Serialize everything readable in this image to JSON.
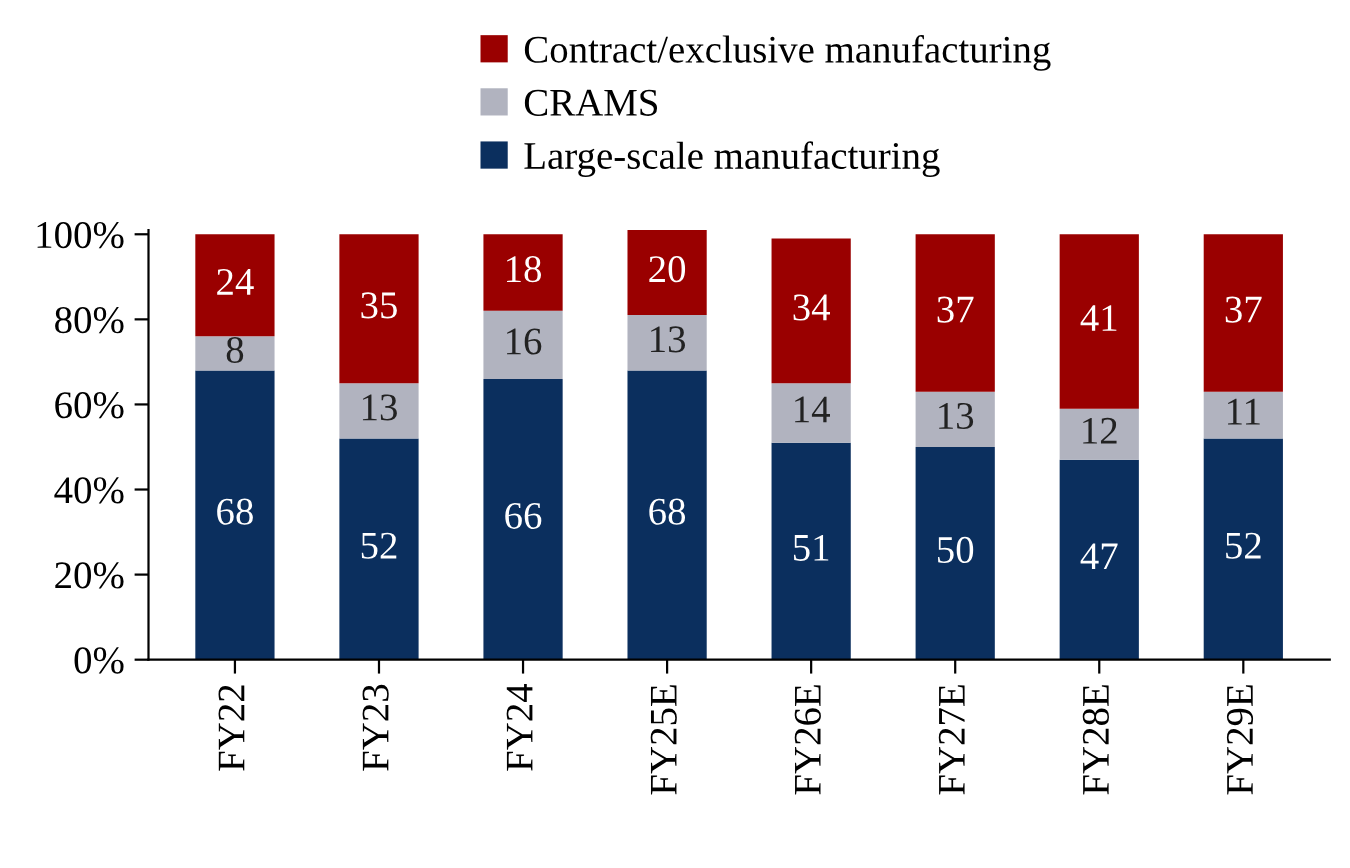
{
  "chart_data": {
    "type": "bar",
    "stacked": true,
    "categories": [
      "FY22",
      "FY23",
      "FY24",
      "FY25E",
      "FY26E",
      "FY27E",
      "FY28E",
      "FY29E"
    ],
    "series": [
      {
        "name": "Large-scale manufacturing",
        "color": "#0b2f5e",
        "values": [
          68,
          52,
          66,
          68,
          51,
          50,
          47,
          52
        ]
      },
      {
        "name": "CRAMS",
        "color": "#b1b3bf",
        "values": [
          8,
          13,
          16,
          13,
          14,
          13,
          12,
          11
        ]
      },
      {
        "name": "Contract/exclusive manufacturing",
        "color": "#9a0000",
        "values": [
          24,
          35,
          18,
          20,
          34,
          37,
          41,
          37
        ]
      }
    ],
    "ylim": [
      0,
      101
    ],
    "yticks": [
      {
        "value": 0,
        "label": "0%"
      },
      {
        "value": 20,
        "label": "20%"
      },
      {
        "value": 40,
        "label": "40%"
      },
      {
        "value": 60,
        "label": "60%"
      },
      {
        "value": 80,
        "label": "80%"
      },
      {
        "value": 100,
        "label": "100%"
      }
    ],
    "data_labels": true,
    "legend": "top",
    "grid": false
  }
}
